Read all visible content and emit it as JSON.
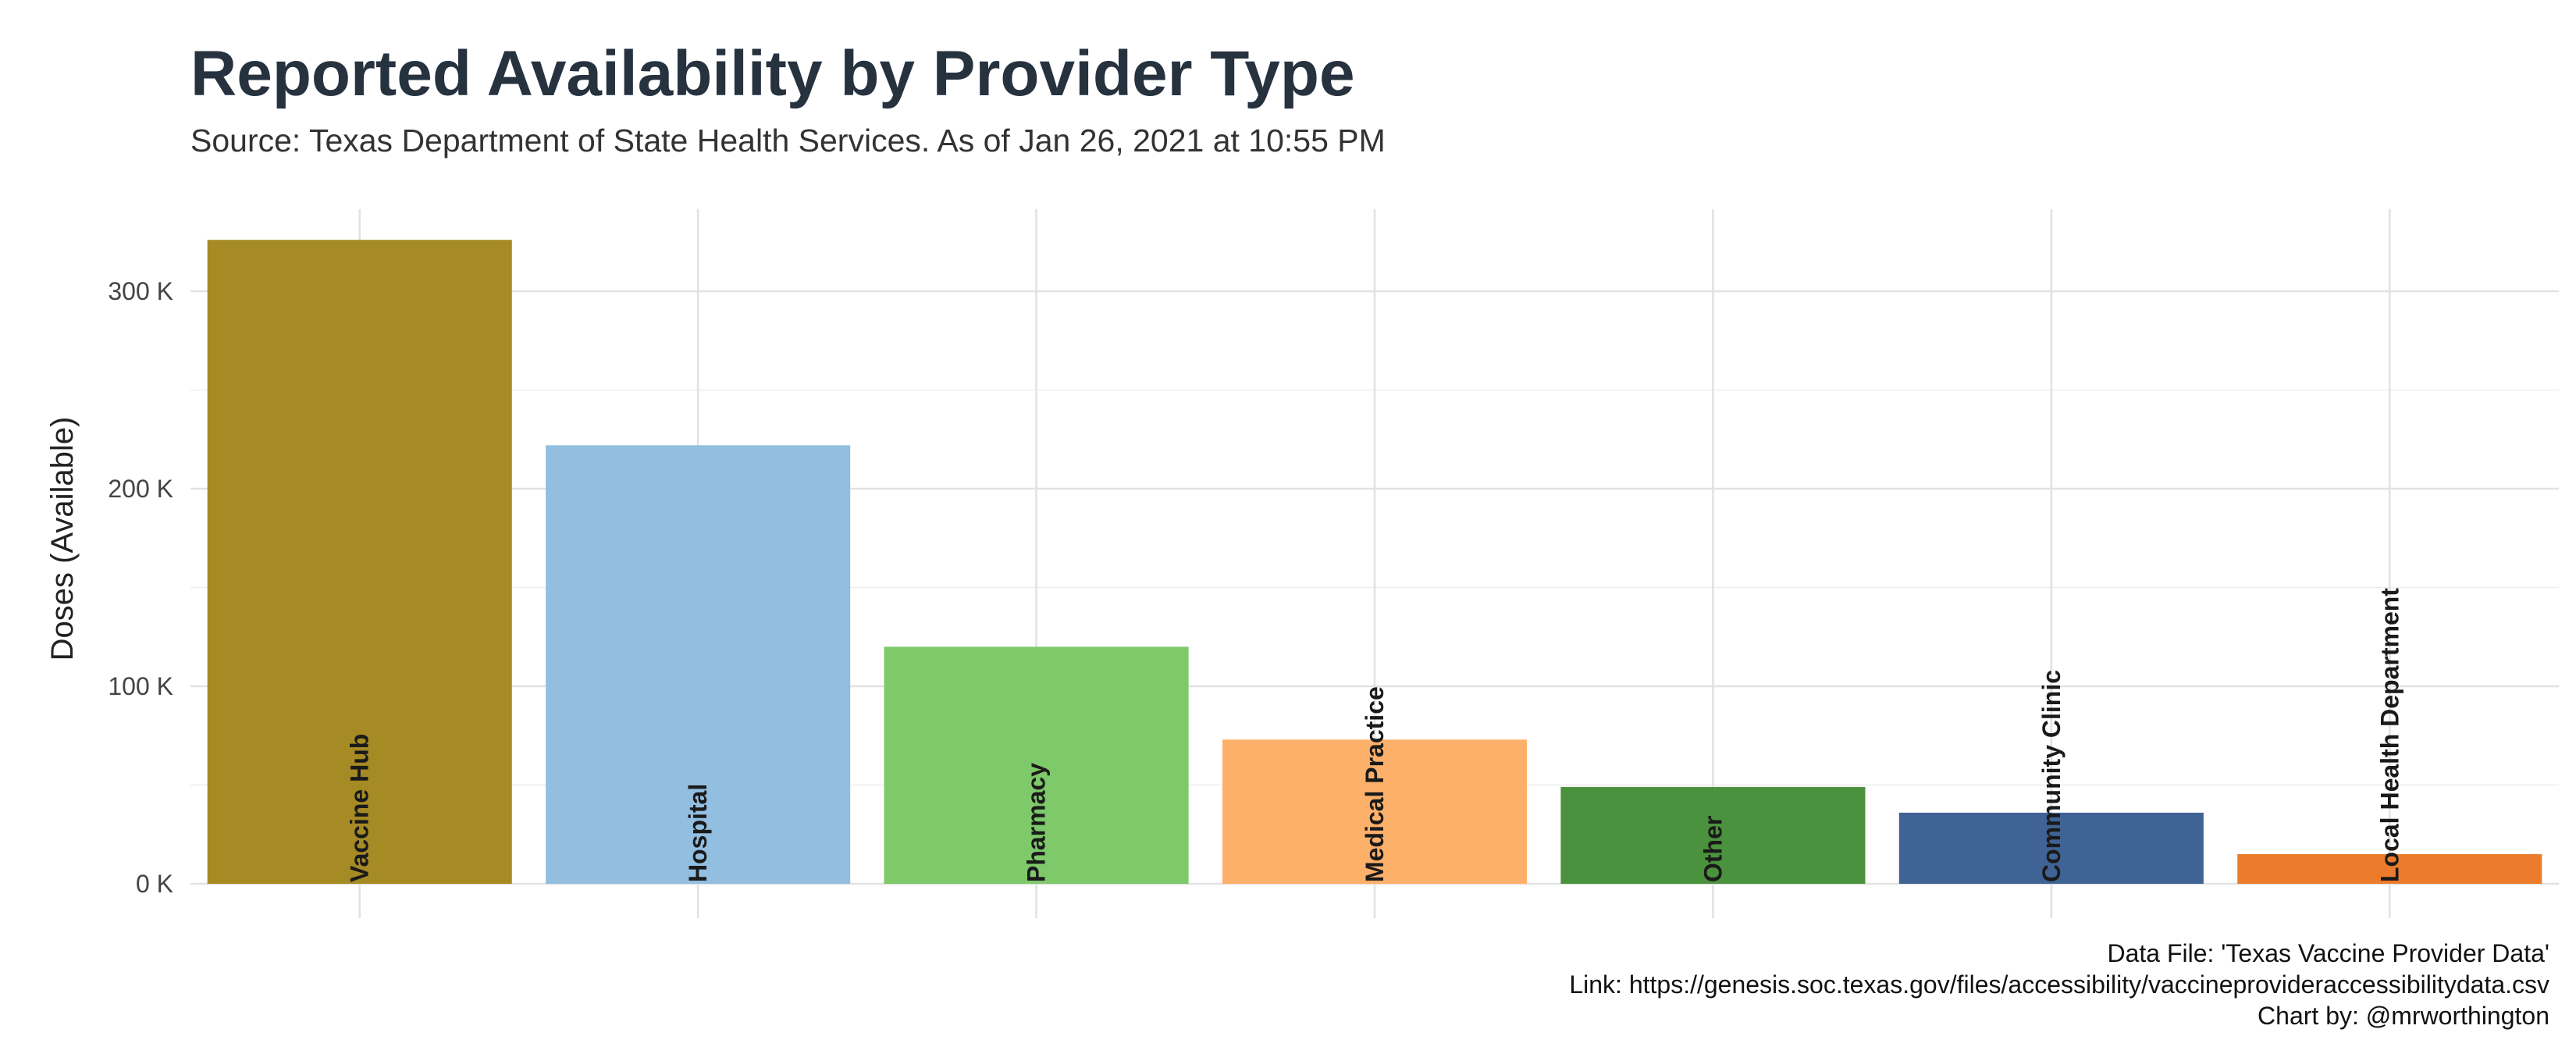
{
  "chart_data": {
    "type": "bar",
    "title": "Reported Availability by Provider Type",
    "subtitle": "Source: Texas Department of State Health Services. As of Jan 26, 2021 at 10:55 PM",
    "xlabel": "",
    "ylabel": "Doses (Available)",
    "ylim": [
      0,
      340000
    ],
    "yticks": [
      0,
      100000,
      200000,
      300000
    ],
    "ytick_labels": [
      "0 K",
      "100 K",
      "200 K",
      "300 K"
    ],
    "grid": true,
    "legend": "none",
    "categories": [
      "Vaccine Hub",
      "Hospital",
      "Pharmacy",
      "Medical Practice",
      "Other",
      "Community Clinic",
      "Local Health Department"
    ],
    "values": [
      326000,
      222000,
      120000,
      73000,
      49000,
      36000,
      15000
    ],
    "colors": [
      "#a68a24",
      "#92bee0",
      "#7ec96a",
      "#fdb06a",
      "#4b923e",
      "#3f6394",
      "#ec7b2b"
    ],
    "caption": [
      "Data File: 'Texas Vaccine Provider Data'",
      "Link: https://genesis.soc.texas.gov/files/accessibility/vaccineprovideraccessibilitydata.csv",
      "Chart by: @mrworthington"
    ]
  }
}
